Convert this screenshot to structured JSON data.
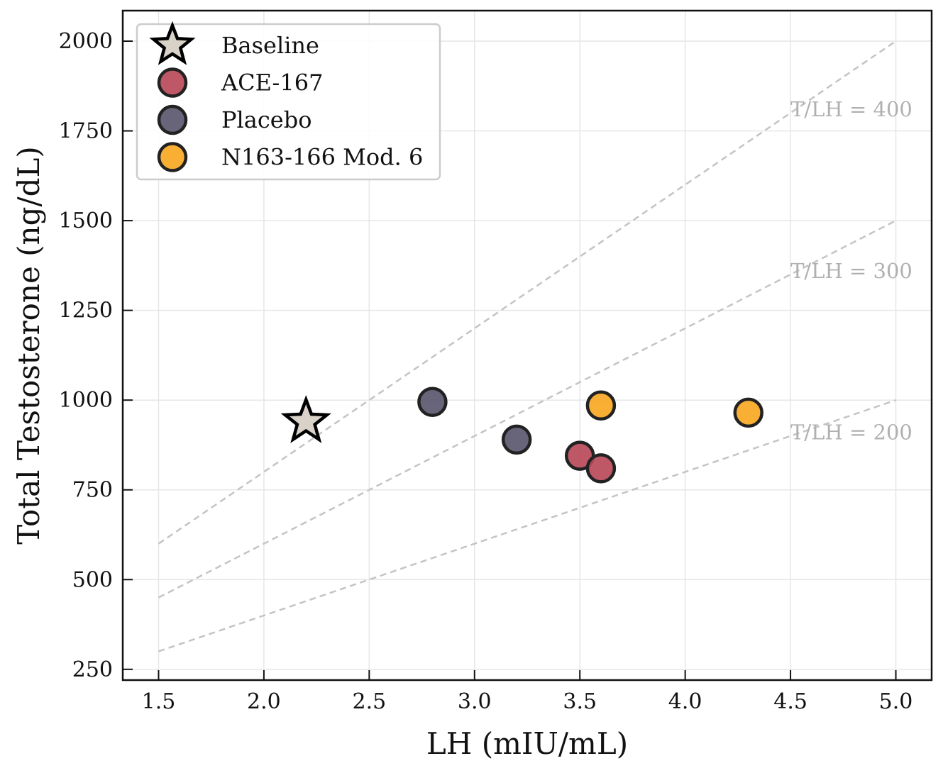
{
  "chart_data": {
    "type": "scatter",
    "xlabel": "LH (mIU/mL)",
    "ylabel": "Total Testosterone (ng/dL)",
    "xlim": [
      1.33,
      5.17
    ],
    "ylim": [
      220,
      2085
    ],
    "x_ticks": [
      1.5,
      2.0,
      2.5,
      3.0,
      3.5,
      4.0,
      4.5,
      5.0
    ],
    "x_tick_labels": [
      "1.5",
      "2.0",
      "2.5",
      "3.0",
      "3.5",
      "4.0",
      "4.5",
      "5.0"
    ],
    "y_ticks": [
      250,
      500,
      750,
      1000,
      1250,
      1500,
      1750,
      2000
    ],
    "y_tick_labels": [
      "250",
      "500",
      "750",
      "1000",
      "1250",
      "1500",
      "1750",
      "2000"
    ],
    "grid": true,
    "legend_position": "top-left",
    "reference_lines": [
      {
        "label": "T/LH = 400",
        "ratio": 400,
        "x_range": [
          1.5,
          5.0
        ],
        "label_at": [
          4.5,
          1810
        ]
      },
      {
        "label": "T/LH = 300",
        "ratio": 300,
        "x_range": [
          1.5,
          5.0
        ],
        "label_at": [
          4.5,
          1360
        ]
      },
      {
        "label": "T/LH = 200",
        "ratio": 200,
        "x_range": [
          1.5,
          5.0
        ],
        "label_at": [
          4.5,
          910
        ]
      }
    ],
    "series": [
      {
        "name": "Baseline",
        "marker": "star",
        "color": "#d8d2c8",
        "points": [
          {
            "x": 2.2,
            "y": 940
          }
        ]
      },
      {
        "name": "ACE-167",
        "marker": "circle",
        "color": "#b84a5a",
        "points": [
          {
            "x": 3.5,
            "y": 845
          },
          {
            "x": 3.6,
            "y": 810
          }
        ]
      },
      {
        "name": "Placebo",
        "marker": "circle",
        "color": "#5b5870",
        "points": [
          {
            "x": 2.8,
            "y": 995
          },
          {
            "x": 3.2,
            "y": 890
          }
        ]
      },
      {
        "name": "N163-166 Mod. 6",
        "marker": "circle",
        "color": "#f7a823",
        "points": [
          {
            "x": 3.6,
            "y": 985
          },
          {
            "x": 4.3,
            "y": 965
          }
        ]
      }
    ]
  }
}
